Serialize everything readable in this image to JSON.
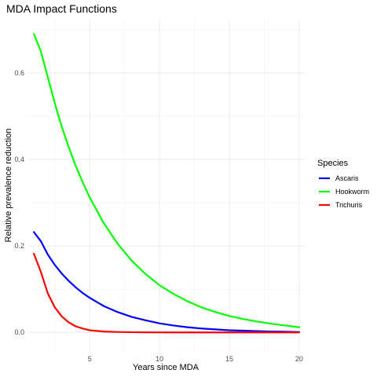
{
  "chart_data": {
    "type": "line",
    "title": "MDA Impact Functions",
    "xlabel": "Years since MDA",
    "ylabel": "Relative prevalence reduction",
    "xlim": [
      0.6,
      20.4
    ],
    "ylim": [
      -0.045,
      0.725
    ],
    "x_ticks": [
      5,
      10,
      15,
      20
    ],
    "x_tick_labels": [
      "5",
      "10",
      "15",
      "20"
    ],
    "y_ticks": [
      0.0,
      0.2,
      0.4,
      0.6
    ],
    "y_tick_labels": [
      "0.0",
      "0.2",
      "0.4",
      "0.6"
    ],
    "grid": true,
    "legend": {
      "title": "Species",
      "position": "right"
    },
    "x": [
      1,
      1.5,
      2,
      2.5,
      3,
      3.5,
      4,
      4.5,
      5,
      6,
      7,
      8,
      9,
      10,
      11,
      12,
      13,
      14,
      15,
      16,
      17,
      18,
      19,
      20
    ],
    "series": [
      {
        "name": "Ascaris",
        "color": "#0000ff",
        "values": [
          0.232,
          0.211,
          0.18,
          0.156,
          0.136,
          0.119,
          0.104,
          0.091,
          0.08,
          0.061,
          0.047,
          0.036,
          0.028,
          0.021,
          0.016,
          0.012,
          0.009,
          0.007,
          0.005,
          0.004,
          0.003,
          0.002,
          0.0015,
          0.001
        ]
      },
      {
        "name": "Hookworm",
        "color": "#00ff00",
        "values": [
          0.69,
          0.65,
          0.59,
          0.53,
          0.475,
          0.428,
          0.385,
          0.347,
          0.312,
          0.253,
          0.205,
          0.166,
          0.135,
          0.109,
          0.089,
          0.072,
          0.058,
          0.047,
          0.038,
          0.031,
          0.025,
          0.02,
          0.016,
          0.012
        ]
      },
      {
        "name": "Trichuris",
        "color": "#ff0000",
        "values": [
          0.182,
          0.14,
          0.09,
          0.058,
          0.037,
          0.023,
          0.014,
          0.009,
          0.005,
          0.002,
          0.001,
          0.0005,
          0.0002,
          0.0001,
          0,
          0,
          0,
          0,
          0,
          0,
          0,
          0,
          0,
          0
        ]
      }
    ]
  }
}
